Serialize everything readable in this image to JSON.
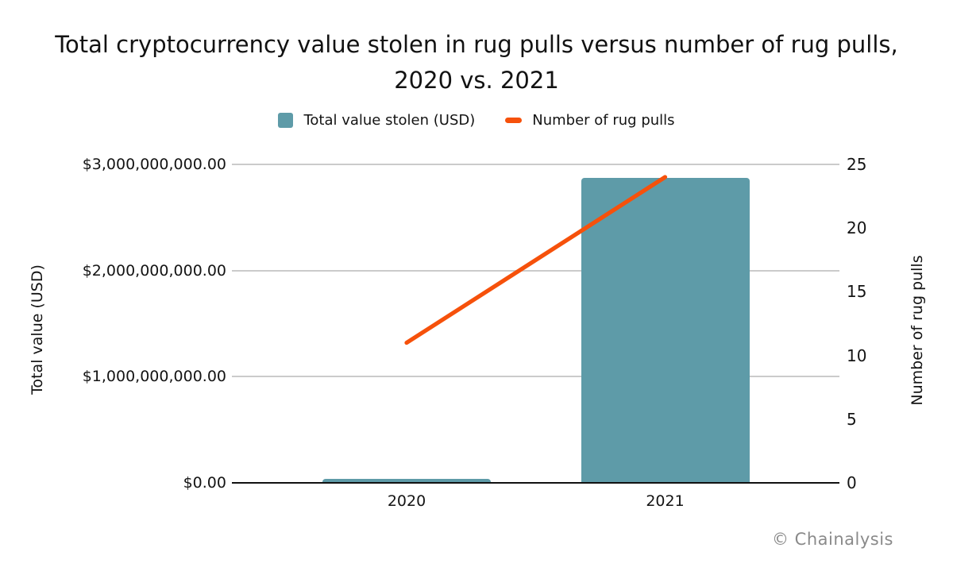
{
  "title": "Total cryptocurrency value stolen in rug pulls versus number of rug pulls, 2020 vs. 2021",
  "footer": {
    "credit": "© Chainalysis"
  },
  "legend": [
    {
      "label": "Total value stolen (USD)",
      "swatch": "teal-square"
    },
    {
      "label": "Number of rug pulls",
      "swatch": "orange-dash"
    }
  ],
  "colors": {
    "bar": "#5E9BA8",
    "line": "#F6510B",
    "gridline": "#CBCBCB",
    "axis_line": "#111111",
    "text": "#141414",
    "credit_gray": "#8A8A8A"
  },
  "chart_data": {
    "type": "bar",
    "subtype": "combo bar + line, dual y-axes",
    "title": "Total cryptocurrency value stolen in rug pulls versus number of rug pulls, 2020 vs. 2021",
    "categories": [
      "2020",
      "2021"
    ],
    "series": [
      {
        "name": "Total value stolen (USD)",
        "type": "bar",
        "axis": "left",
        "values": [
          40000000,
          2870000000
        ]
      },
      {
        "name": "Number of rug pulls",
        "type": "line",
        "axis": "right",
        "values": [
          11,
          24
        ]
      }
    ],
    "left_axis": {
      "label": "Total value (USD)",
      "ticks": [
        "$3,000,000,000.00",
        "$2,000,000,000.00",
        "$1,000,000,000.00",
        "$0.00"
      ],
      "tick_values": [
        3000000000,
        2000000000,
        1000000000,
        0
      ],
      "range": [
        0,
        3000000000
      ]
    },
    "right_axis": {
      "label": "Number of rug pulls",
      "ticks": [
        "25",
        "20",
        "15",
        "10",
        "5",
        "0"
      ],
      "tick_values": [
        25,
        20,
        15,
        10,
        5,
        0
      ],
      "range": [
        0,
        25
      ]
    },
    "grid": "horizontal gridlines at left-axis ticks only",
    "legend_position": "top-center",
    "source_credit": "© Chainalysis"
  }
}
